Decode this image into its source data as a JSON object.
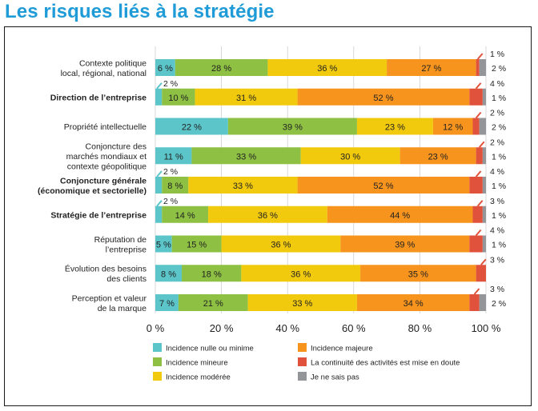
{
  "title": "Les risques liés à la stratégie",
  "chart_data": {
    "type": "bar",
    "orientation": "horizontal",
    "stacked": true,
    "xlim": [
      0,
      100
    ],
    "xticks": [
      "0 %",
      "20 %",
      "40 %",
      "60 %",
      "80 %",
      "100 %"
    ],
    "grid": true,
    "legend_position": "bottom",
    "categories": [
      {
        "label": [
          "Contexte politique",
          "local, régional, national"
        ],
        "bold": false
      },
      {
        "label": [
          "Direction de l’entreprise"
        ],
        "bold": true
      },
      {
        "label": [
          "Propriété intellectuelle"
        ],
        "bold": false
      },
      {
        "label": [
          "Conjoncture des",
          "marchés mondiaux et",
          "contexte géopolitique"
        ],
        "bold": false
      },
      {
        "label": [
          "Conjoncture générale",
          "(économique et sectorielle)"
        ],
        "bold": true
      },
      {
        "label": [
          "Stratégie de l’entreprise"
        ],
        "bold": true
      },
      {
        "label": [
          "Réputation de",
          "l’entreprise"
        ],
        "bold": false
      },
      {
        "label": [
          "Évolution des besoins",
          "des clients"
        ],
        "bold": false
      },
      {
        "label": [
          "Perception et valeur",
          "de la marque"
        ],
        "bold": false
      }
    ],
    "series": [
      {
        "name": "Incidence nulle ou minime",
        "color": "#5bc5c9",
        "values": [
          6,
          2,
          22,
          11,
          2,
          2,
          5,
          8,
          7
        ]
      },
      {
        "name": "Incidence mineure",
        "color": "#8dc043",
        "values": [
          28,
          10,
          39,
          33,
          8,
          14,
          15,
          18,
          21
        ]
      },
      {
        "name": "Incidence modérée",
        "color": "#f2ca0d",
        "values": [
          36,
          31,
          23,
          30,
          33,
          36,
          36,
          36,
          33
        ]
      },
      {
        "name": "Incidence majeure",
        "color": "#f7941d",
        "values": [
          27,
          52,
          12,
          23,
          52,
          44,
          39,
          35,
          34
        ]
      },
      {
        "name": "La continuité des activités est mise en doute",
        "color": "#e0523c",
        "values": [
          1,
          4,
          2,
          2,
          4,
          3,
          4,
          3,
          3
        ]
      },
      {
        "name": "Je ne sais pas",
        "color": "#939598",
        "values": [
          2,
          1,
          2,
          1,
          1,
          1,
          1,
          0,
          2
        ]
      }
    ],
    "value_labels": [
      [
        "6 %",
        "28 %",
        "36 %",
        "27 %",
        "1 %",
        "2 %"
      ],
      [
        "2 %",
        "10 %",
        "31 %",
        "52 %",
        "4 %",
        "1 %"
      ],
      [
        "22 %",
        "39 %",
        "23 %",
        "12 %",
        "2 %",
        "2 %"
      ],
      [
        "11 %",
        "33 %",
        "30 %",
        "23 %",
        "2 %",
        "1 %"
      ],
      [
        "2 %",
        "8 %",
        "33 %",
        "52 %",
        "4 %",
        "1 %"
      ],
      [
        "2 %",
        "14 %",
        "36 %",
        "44 %",
        "3 %",
        "1 %"
      ],
      [
        "5 %",
        "15 %",
        "36 %",
        "39 %",
        "4 %",
        "1 %"
      ],
      [
        "8 %",
        "18 %",
        "36 %",
        "35 %",
        "3 %",
        ""
      ],
      [
        "7 %",
        "21 %",
        "33 %",
        "34 %",
        "3 %",
        "2 %"
      ]
    ]
  }
}
